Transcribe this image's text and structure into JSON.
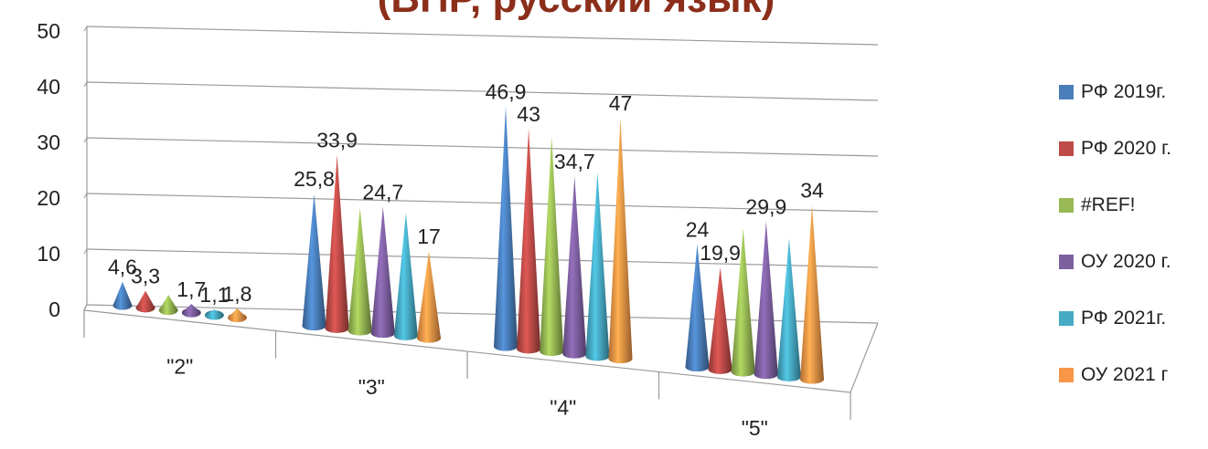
{
  "title": "(ВПР, русский язык)",
  "chart_data": {
    "type": "bar",
    "style": "3d-cone",
    "categories": [
      "\"2\"",
      "\"3\"",
      "\"4\"",
      "\"5\""
    ],
    "ylim": [
      0,
      50
    ],
    "yticks": [
      "0",
      "10",
      "20",
      "30",
      "40",
      "50"
    ],
    "grid": true,
    "legend_position": "right",
    "series": [
      {
        "name": "РФ 2019г.",
        "color": "#4a7ebb",
        "values": [
          4.6,
          25.8,
          46.9,
          24
        ],
        "labels": [
          "4,6",
          "25,8",
          "46,9",
          "24"
        ]
      },
      {
        "name": "РФ 2020 г.",
        "color": "#be4b48",
        "values": [
          3.3,
          33.9,
          43,
          19.9
        ],
        "labels": [
          "3,3",
          "33,9",
          "43",
          "19,9"
        ]
      },
      {
        "name": "#REF!",
        "color": "#98b954",
        "values": [
          3,
          24,
          42,
          28
        ],
        "labels": [
          "",
          "",
          "",
          ""
        ]
      },
      {
        "name": "ОУ 2020 г.",
        "color": "#7d5fa0",
        "values": [
          1.7,
          24.7,
          34.7,
          29.9
        ],
        "labels": [
          "1,7",
          "24,7",
          "34,7",
          "29,9"
        ]
      },
      {
        "name": "РФ 2021г.",
        "color": "#46aac5",
        "values": [
          1.1,
          24,
          36,
          27
        ],
        "labels": [
          "1,1",
          "",
          "",
          ""
        ]
      },
      {
        "name": "ОУ 2021 г",
        "color": "#f79646",
        "values": [
          1.8,
          17,
          47,
          34
        ],
        "labels": [
          "1,8",
          "17",
          "47",
          "34"
        ]
      }
    ]
  }
}
